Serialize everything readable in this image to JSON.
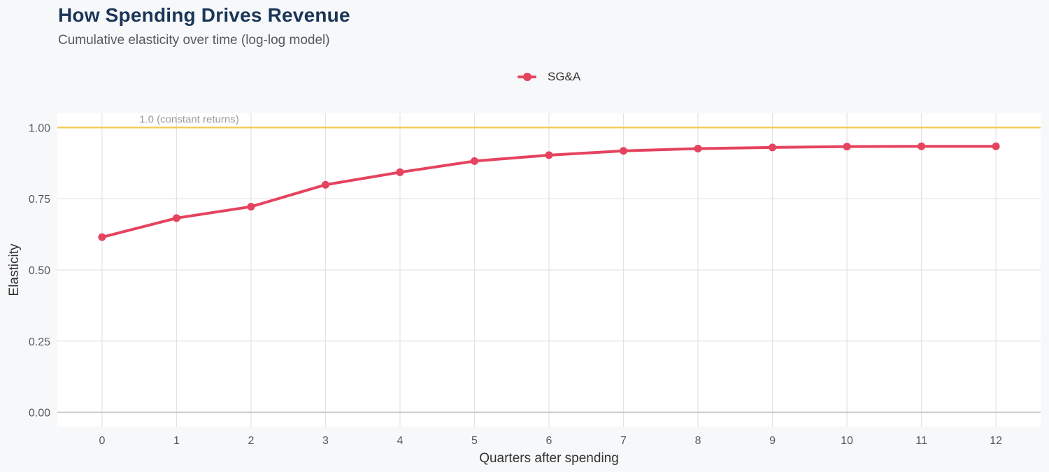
{
  "chart_data": {
    "type": "line",
    "title": "How Spending Drives Revenue",
    "subtitle": "Cumulative elasticity over time (log-log model)",
    "xlabel": "Quarters after spending",
    "ylabel": "Elasticity",
    "x": [
      0,
      1,
      2,
      3,
      4,
      5,
      6,
      7,
      8,
      9,
      10,
      11,
      12
    ],
    "xlim": [
      -0.6,
      12.6
    ],
    "ylim": [
      -0.05,
      1.05
    ],
    "xticks": [
      "0",
      "1",
      "2",
      "3",
      "4",
      "5",
      "6",
      "7",
      "8",
      "9",
      "10",
      "11",
      "12"
    ],
    "yticks": [
      "0.00",
      "0.25",
      "0.50",
      "0.75",
      "1.00"
    ],
    "ytick_values": [
      0,
      0.25,
      0.5,
      0.75,
      1.0
    ],
    "grid": true,
    "legend_position": "top",
    "series": [
      {
        "name": "SG&A",
        "color": "#e5435e",
        "values": [
          0.615,
          0.682,
          0.722,
          0.799,
          0.843,
          0.882,
          0.903,
          0.918,
          0.926,
          0.93,
          0.933,
          0.934,
          0.934
        ]
      }
    ],
    "reference_line": {
      "y": 1.0,
      "label": "1.0 (constant returns)",
      "color": "#f2c94c"
    }
  }
}
